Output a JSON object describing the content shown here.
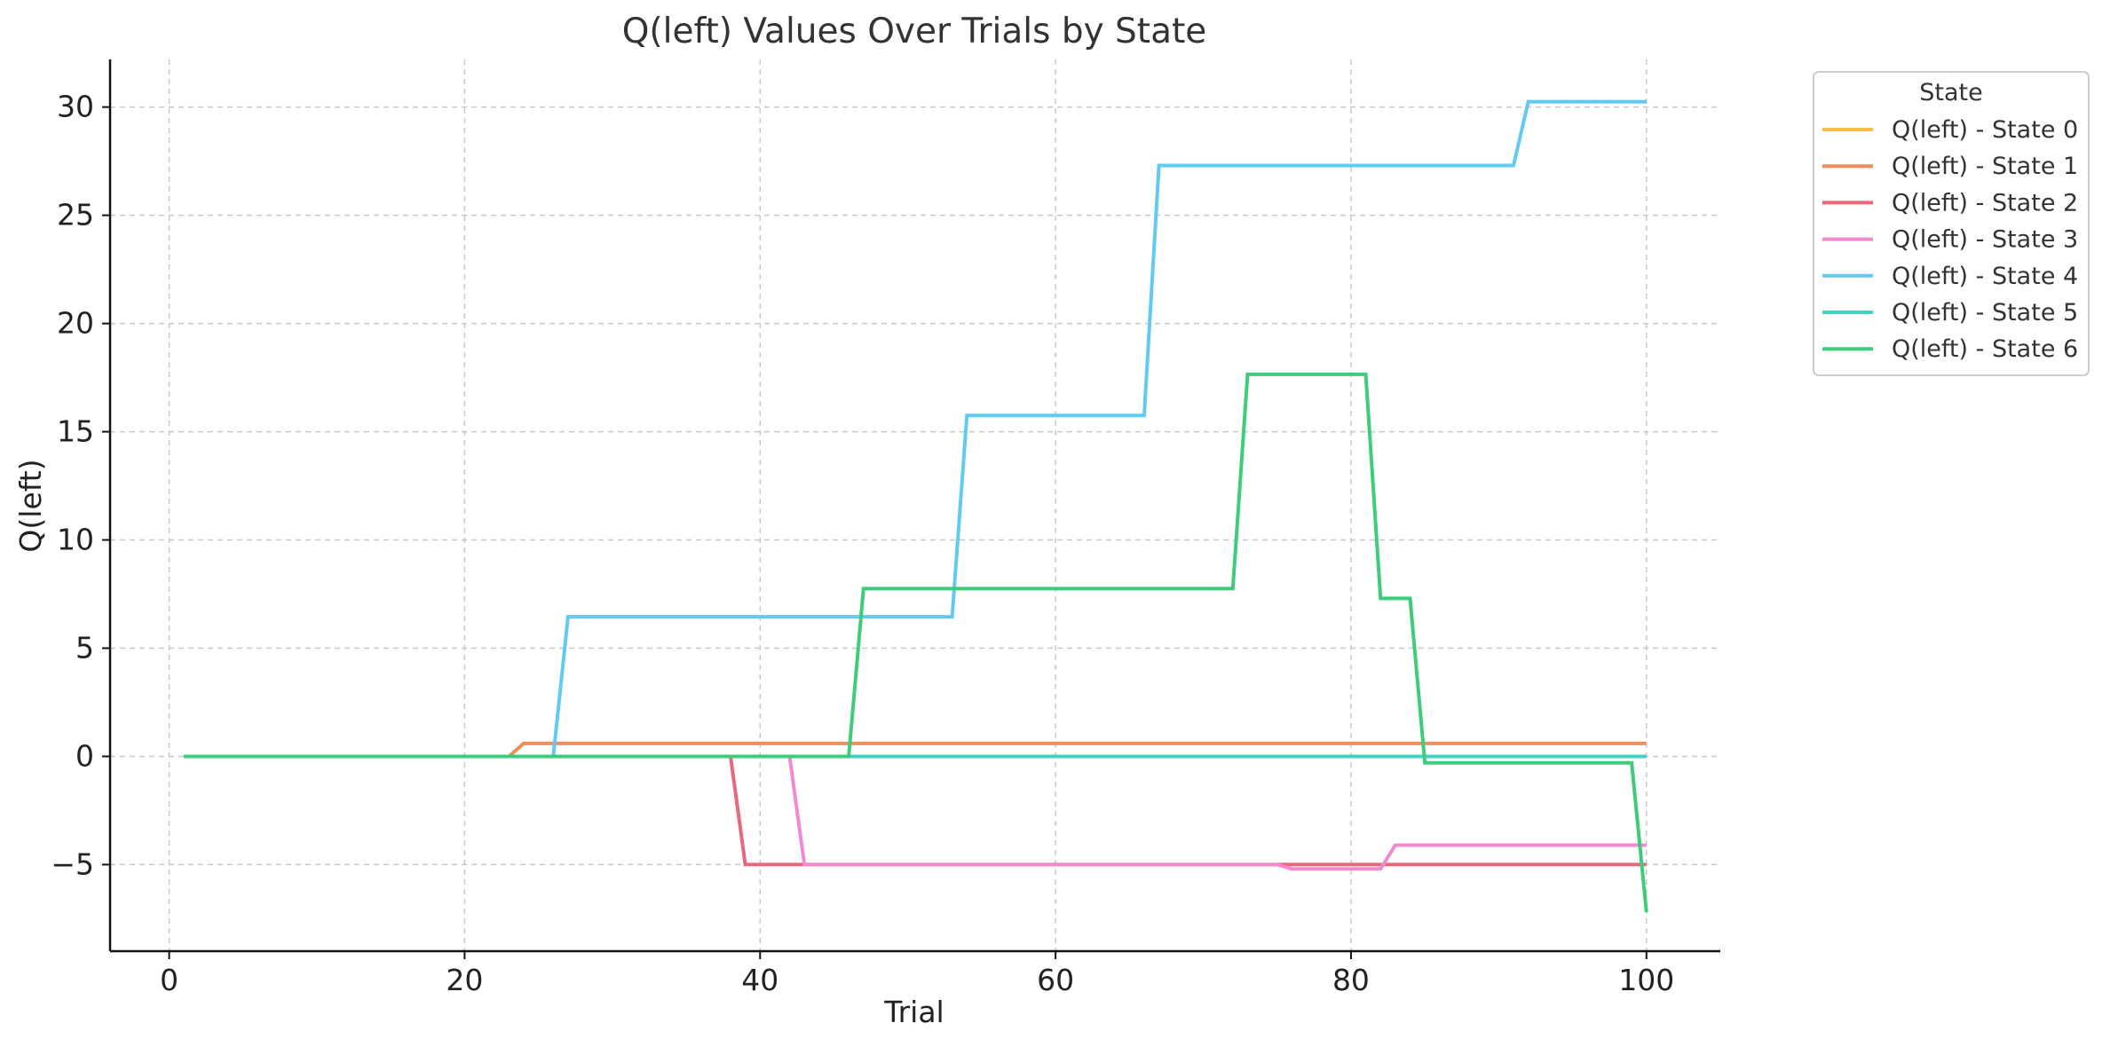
{
  "chart_data": {
    "type": "line",
    "title": "Q(left) Values Over Trials by State",
    "xlabel": "Trial",
    "ylabel": "Q(left)",
    "xlim": [
      -4,
      105
    ],
    "ylim": [
      -9,
      32.2
    ],
    "xticks": [
      0,
      20,
      40,
      60,
      80,
      100
    ],
    "yticks": [
      -5,
      0,
      5,
      10,
      15,
      20,
      25,
      30
    ],
    "ytick_labels": [
      "−5",
      "0",
      "5",
      "10",
      "15",
      "20",
      "25",
      "30"
    ],
    "grid": true,
    "legend": {
      "title": "State",
      "placement": "outside-upper-right"
    },
    "series": [
      {
        "name": "Q(left) - State 0",
        "color": "#F6BE4A",
        "points": [
          [
            1,
            0
          ],
          [
            100,
            0
          ]
        ]
      },
      {
        "name": "Q(left) - State 1",
        "color": "#EE8E5C",
        "points": [
          [
            1,
            0
          ],
          [
            23,
            0
          ],
          [
            24,
            0.6
          ],
          [
            100,
            0.6
          ]
        ]
      },
      {
        "name": "Q(left) - State 2",
        "color": "#E8687A",
        "points": [
          [
            1,
            0
          ],
          [
            38,
            0
          ],
          [
            39,
            -5
          ],
          [
            100,
            -5
          ]
        ]
      },
      {
        "name": "Q(left) - State 3",
        "color": "#F28AD0",
        "points": [
          [
            1,
            0
          ],
          [
            42,
            0
          ],
          [
            43,
            -5
          ],
          [
            75,
            -5
          ],
          [
            76,
            -5.2
          ],
          [
            82,
            -5.2
          ],
          [
            83,
            -4.1
          ],
          [
            100,
            -4.1
          ]
        ]
      },
      {
        "name": "Q(left) - State 4",
        "color": "#62C9F0",
        "points": [
          [
            1,
            0
          ],
          [
            26,
            0
          ],
          [
            27,
            6.45
          ],
          [
            53,
            6.45
          ],
          [
            54,
            15.75
          ],
          [
            66,
            15.75
          ],
          [
            67,
            27.3
          ],
          [
            91,
            27.3
          ],
          [
            92,
            30.25
          ],
          [
            100,
            30.25
          ]
        ]
      },
      {
        "name": "Q(left) - State 5",
        "color": "#41D2C1",
        "points": [
          [
            1,
            0
          ],
          [
            100,
            0
          ]
        ]
      },
      {
        "name": "Q(left) - State 6",
        "color": "#3FCB7C",
        "points": [
          [
            1,
            0
          ],
          [
            46,
            0
          ],
          [
            47,
            7.75
          ],
          [
            72,
            7.75
          ],
          [
            73,
            17.65
          ],
          [
            81,
            17.65
          ],
          [
            82,
            7.3
          ],
          [
            84,
            7.3
          ],
          [
            85,
            -0.3
          ],
          [
            99,
            -0.3
          ],
          [
            100,
            -7.2
          ]
        ]
      }
    ]
  }
}
